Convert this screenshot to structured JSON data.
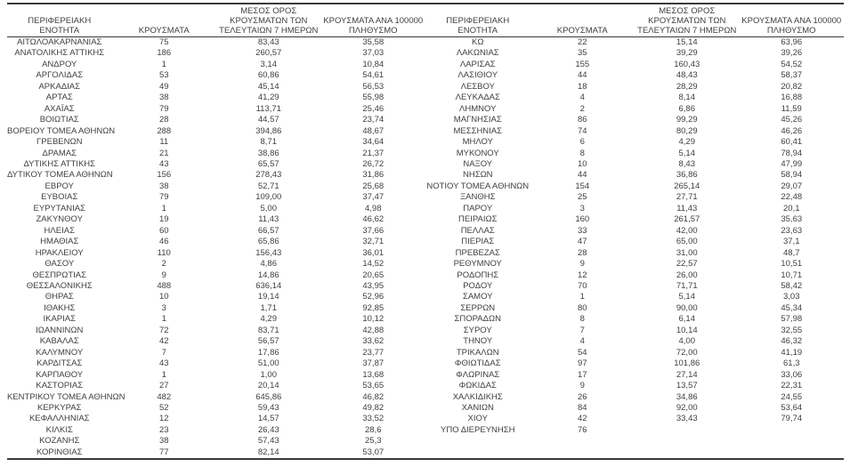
{
  "table": {
    "headers": {
      "region": "ΠΕΡΙΦΕΡΕΙΑΚΗ ΕΝΟΤΗΤΑ",
      "cases": "ΚΡΟΥΣΜΑΤΑ",
      "avg7": "ΜΕΣΟΣ ΟΡΟΣ\nΚΡΟΥΣΜΑΤΩΝ ΤΩΝ\nΤΕΛΕΥΤΑΙΩΝ 7 ΗΜΕΡΩΝ",
      "per100k": "ΚΡΟΥΣΜΑΤΑ ΑΝΑ 100000\nΠΛΗΘΥΣΜΟ"
    },
    "left_rows": [
      [
        "ΑΙΤΩΛΟΑΚΑΡΝΑΝΙΑΣ",
        "75",
        "83,43",
        "35,58"
      ],
      [
        "ΑΝΑΤΟΛΙΚΗΣ ΑΤΤΙΚΗΣ",
        "186",
        "260,57",
        "37,03"
      ],
      [
        "ΑΝΔΡΟΥ",
        "1",
        "3,14",
        "10,84"
      ],
      [
        "ΑΡΓΟΛΙΔΑΣ",
        "53",
        "60,86",
        "54,61"
      ],
      [
        "ΑΡΚΑΔΙΑΣ",
        "49",
        "45,14",
        "56,53"
      ],
      [
        "ΑΡΤΑΣ",
        "38",
        "41,29",
        "55,98"
      ],
      [
        "ΑΧΑΪΑΣ",
        "79",
        "113,71",
        "25,46"
      ],
      [
        "ΒΟΙΩΤΙΑΣ",
        "28",
        "44,57",
        "23,74"
      ],
      [
        "ΒΟΡΕΙΟΥ ΤΟΜΕΑ ΑΘΗΝΩΝ",
        "288",
        "394,86",
        "48,67"
      ],
      [
        "ΓΡΕΒΕΝΩΝ",
        "11",
        "8,71",
        "34,64"
      ],
      [
        "ΔΡΑΜΑΣ",
        "21",
        "38,86",
        "21,37"
      ],
      [
        "ΔΥΤΙΚΗΣ ΑΤΤΙΚΗΣ",
        "43",
        "65,57",
        "26,72"
      ],
      [
        "ΔΥΤΙΚΟΥ ΤΟΜΕΑ ΑΘΗΝΩΝ",
        "156",
        "278,43",
        "31,86"
      ],
      [
        "ΕΒΡΟΥ",
        "38",
        "52,71",
        "25,68"
      ],
      [
        "ΕΥΒΟΙΑΣ",
        "79",
        "109,00",
        "37,47"
      ],
      [
        "ΕΥΡΥΤΑΝΙΑΣ",
        "1",
        "5,00",
        "4,98"
      ],
      [
        "ΖΑΚΥΝΘΟΥ",
        "19",
        "11,43",
        "46,62"
      ],
      [
        "ΗΛΕΙΑΣ",
        "60",
        "66,57",
        "37,66"
      ],
      [
        "ΗΜΑΘΙΑΣ",
        "46",
        "65,86",
        "32,71"
      ],
      [
        "ΗΡΑΚΛΕΙΟΥ",
        "110",
        "156,43",
        "36,01"
      ],
      [
        "ΘΑΣΟΥ",
        "2",
        "4,86",
        "14,52"
      ],
      [
        "ΘΕΣΠΡΩΤΙΑΣ",
        "9",
        "14,86",
        "20,65"
      ],
      [
        "ΘΕΣΣΑΛΟΝΙΚΗΣ",
        "488",
        "636,14",
        "43,95"
      ],
      [
        "ΘΗΡΑΣ",
        "10",
        "19,14",
        "52,96"
      ],
      [
        "ΙΘΑΚΗΣ",
        "3",
        "1,71",
        "92,85"
      ],
      [
        "ΙΚΑΡΙΑΣ",
        "1",
        "4,29",
        "10,12"
      ],
      [
        "ΙΩΑΝΝΙΝΩΝ",
        "72",
        "83,71",
        "42,88"
      ],
      [
        "ΚΑΒΑΛΑΣ",
        "42",
        "56,57",
        "33,62"
      ],
      [
        "ΚΑΛΥΜΝΟΥ",
        "7",
        "17,86",
        "23,77"
      ],
      [
        "ΚΑΡΔΙΤΣΑΣ",
        "43",
        "51,00",
        "37,87"
      ],
      [
        "ΚΑΡΠΑΘΟΥ",
        "1",
        "1,00",
        "13,68"
      ],
      [
        "ΚΑΣΤΟΡΙΑΣ",
        "27",
        "20,14",
        "53,65"
      ],
      [
        "ΚΕΝΤΡΙΚΟΥ ΤΟΜΕΑ ΑΘΗΝΩΝ",
        "482",
        "645,86",
        "46,82"
      ],
      [
        "ΚΕΡΚΥΡΑΣ",
        "52",
        "59,43",
        "49,82"
      ],
      [
        "ΚΕΦΑΛΛΗΝΙΑΣ",
        "12",
        "14,57",
        "33,52"
      ],
      [
        "ΚΙΛΚΙΣ",
        "23",
        "26,43",
        "28,6"
      ],
      [
        "ΚΟΖΑΝΗΣ",
        "38",
        "57,43",
        "25,3"
      ],
      [
        "ΚΟΡΙΝΘΙΑΣ",
        "77",
        "82,14",
        "53,07"
      ]
    ],
    "right_rows": [
      [
        "ΚΩ",
        "22",
        "15,14",
        "63,96"
      ],
      [
        "ΛΑΚΩΝΙΑΣ",
        "35",
        "39,29",
        "39,26"
      ],
      [
        "ΛΑΡΙΣΑΣ",
        "155",
        "160,43",
        "54,52"
      ],
      [
        "ΛΑΣΙΘΙΟΥ",
        "44",
        "48,43",
        "58,37"
      ],
      [
        "ΛΕΣΒΟΥ",
        "18",
        "28,29",
        "20,82"
      ],
      [
        "ΛΕΥΚΑΔΑΣ",
        "4",
        "8,14",
        "16,88"
      ],
      [
        "ΛΗΜΝΟΥ",
        "2",
        "6,86",
        "11,59"
      ],
      [
        "ΜΑΓΝΗΣΙΑΣ",
        "86",
        "99,29",
        "45,26"
      ],
      [
        "ΜΕΣΣΗΝΙΑΣ",
        "74",
        "80,29",
        "46,26"
      ],
      [
        "ΜΗΛΟΥ",
        "6",
        "4,29",
        "60,41"
      ],
      [
        "ΜΥΚΟΝΟΥ",
        "8",
        "5,14",
        "78,94"
      ],
      [
        "ΝΑΞΟΥ",
        "10",
        "8,43",
        "47,99"
      ],
      [
        "ΝΗΣΩΝ",
        "44",
        "36,86",
        "58,94"
      ],
      [
        "ΝΟΤΙΟΥ ΤΟΜΕΑ ΑΘΗΝΩΝ",
        "154",
        "265,14",
        "29,07"
      ],
      [
        "ΞΑΝΘΗΣ",
        "25",
        "27,71",
        "22,48"
      ],
      [
        "ΠΑΡΟΥ",
        "3",
        "11,43",
        "20,1"
      ],
      [
        "ΠΕΙΡΑΙΩΣ",
        "160",
        "261,57",
        "35,63"
      ],
      [
        "ΠΕΛΛΑΣ",
        "33",
        "42,00",
        "23,63"
      ],
      [
        "ΠΙΕΡΙΑΣ",
        "47",
        "65,00",
        "37,1"
      ],
      [
        "ΠΡΕΒΕΖΑΣ",
        "28",
        "31,00",
        "48,7"
      ],
      [
        "ΡΕΘΥΜΝΟΥ",
        "9",
        "22,57",
        "10,51"
      ],
      [
        "ΡΟΔΟΠΗΣ",
        "12",
        "26,00",
        "10,71"
      ],
      [
        "ΡΟΔΟΥ",
        "70",
        "71,71",
        "58,42"
      ],
      [
        "ΣΑΜΟΥ",
        "1",
        "5,14",
        "3,03"
      ],
      [
        "ΣΕΡΡΩΝ",
        "80",
        "90,00",
        "45,34"
      ],
      [
        "ΣΠΟΡΑΔΩΝ",
        "8",
        "6,14",
        "57,98"
      ],
      [
        "ΣΥΡΟΥ",
        "7",
        "10,14",
        "32,55"
      ],
      [
        "ΤΗΝΟΥ",
        "4",
        "4,00",
        "46,32"
      ],
      [
        "ΤΡΙΚΑΛΩΝ",
        "54",
        "72,00",
        "41,19"
      ],
      [
        "ΦΘΙΩΤΙΔΑΣ",
        "97",
        "101,86",
        "61,3"
      ],
      [
        "ΦΛΩΡΙΝΑΣ",
        "17",
        "27,14",
        "33,06"
      ],
      [
        "ΦΩΚΙΔΑΣ",
        "9",
        "13,57",
        "22,31"
      ],
      [
        "ΧΑΛΚΙΔΙΚΗΣ",
        "26",
        "34,86",
        "24,55"
      ],
      [
        "ΧΑΝΙΩΝ",
        "84",
        "92,00",
        "53,64"
      ],
      [
        "ΧΙΟΥ",
        "42",
        "33,43",
        "79,74"
      ],
      [
        "ΥΠΟ ΔΙΕΡΕΥΝΗΣΗ",
        "76",
        "",
        ""
      ]
    ]
  }
}
